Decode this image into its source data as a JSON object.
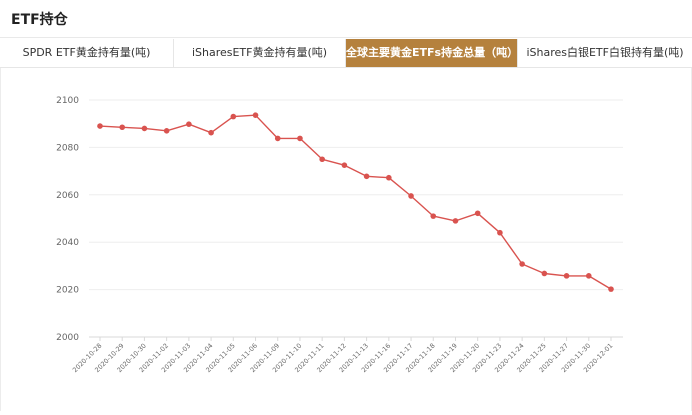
{
  "header": {
    "title": "ETF持仓"
  },
  "tabs": [
    {
      "label": "SPDR ETF黄金持有量(吨)",
      "active": false
    },
    {
      "label": "iSharesETF黄金持有量(吨)",
      "active": false
    },
    {
      "label": "全球主要黄金ETFs持金总量（吨）",
      "active": true
    },
    {
      "label": "iShares白银ETF白银持有量(吨)",
      "active": false
    }
  ],
  "colors": {
    "accent": "#b5813d",
    "line": "#d9534f",
    "grid": "#eeeeee",
    "axis_text": "#666666"
  },
  "chart_data": {
    "type": "line",
    "title": "",
    "xlabel": "",
    "ylabel": "",
    "categories": [
      "2020-10-28",
      "2020-10-29",
      "2020-10-30",
      "2020-11-02",
      "2020-11-03",
      "2020-11-04",
      "2020-11-05",
      "2020-11-06",
      "2020-11-09",
      "2020-11-10",
      "2020-11-11",
      "2020-11-12",
      "2020-11-13",
      "2020-11-16",
      "2020-11-17",
      "2020-11-18",
      "2020-11-19",
      "2020-11-20",
      "2020-11-23",
      "2020-11-24",
      "2020-11-25",
      "2020-11-27",
      "2020-11-30",
      "2020-12-01"
    ],
    "series": [
      {
        "values": [
          2089,
          2088.5,
          2088,
          2087,
          2089.8,
          2086.2,
          2093,
          2093.6,
          2083.8,
          2083.8,
          2075,
          2072.5,
          2067.8,
          2067.2,
          2059.5,
          2051,
          2049,
          2052.2,
          2044,
          2030.8,
          2026.8,
          2025.8,
          2025.8,
          2020.2
        ]
      }
    ],
    "yticks": [
      2000,
      2020,
      2040,
      2060,
      2080,
      2100
    ],
    "ylim": [
      2000,
      2100
    ],
    "grid": true,
    "legend": "none"
  }
}
